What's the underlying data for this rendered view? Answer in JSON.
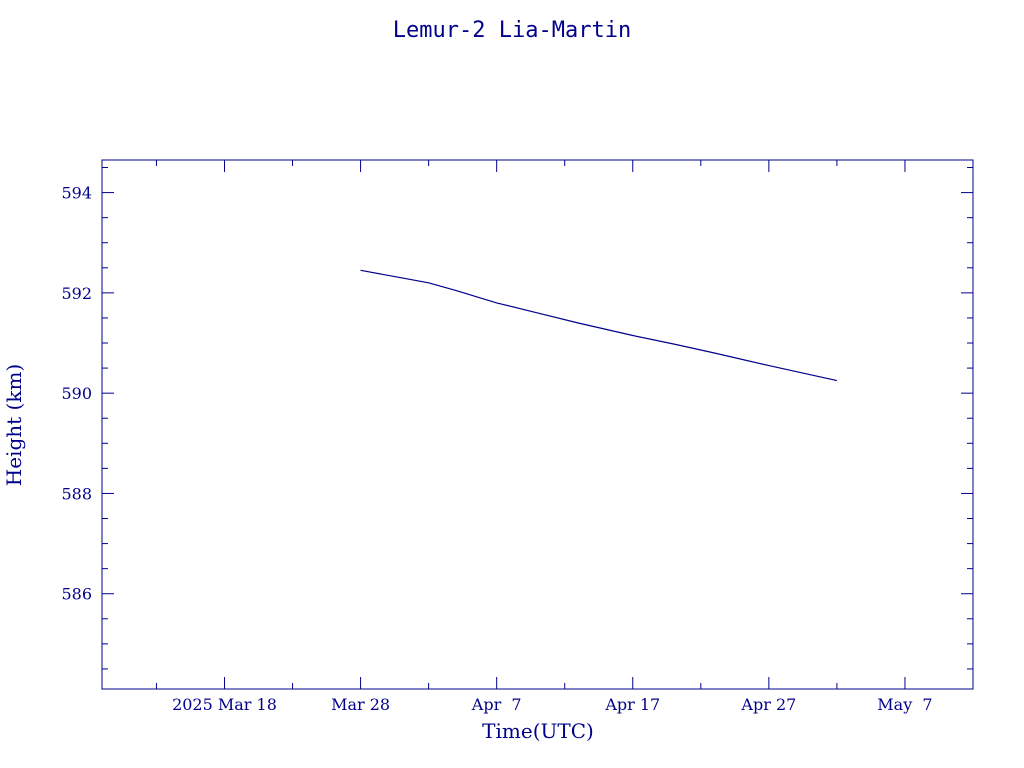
{
  "chart_data": {
    "type": "line",
    "title": "Lemur-2 Lia-Martin",
    "xlabel": "Time(UTC)",
    "ylabel": "Height (km)",
    "x_tick_labels": [
      "2025 Mar 18",
      "Mar 28",
      "Apr  7",
      "Apr 17",
      "Apr 27",
      "May  7"
    ],
    "x_tick_dates": [
      "2025-03-18",
      "2025-03-28",
      "2025-04-07",
      "2025-04-17",
      "2025-04-27",
      "2025-05-07"
    ],
    "xlim": [
      "2025-03-09",
      "2025-05-12"
    ],
    "y_tick_labels": [
      "586",
      "588",
      "590",
      "592",
      "594"
    ],
    "y_ticks": [
      586,
      588,
      590,
      592,
      594
    ],
    "ylim": [
      584.1,
      594.65
    ],
    "grid": false,
    "series": [
      {
        "x": [
          "2025-03-28",
          "2025-03-30",
          "2025-04-02",
          "2025-04-04",
          "2025-04-07",
          "2025-04-10",
          "2025-04-13",
          "2025-04-17",
          "2025-04-20",
          "2025-04-23",
          "2025-04-27",
          "2025-05-02"
        ],
        "values": [
          592.45,
          592.35,
          592.2,
          592.05,
          591.8,
          591.6,
          591.4,
          591.15,
          590.98,
          590.8,
          590.55,
          590.25
        ]
      }
    ],
    "color": "#00008b"
  }
}
